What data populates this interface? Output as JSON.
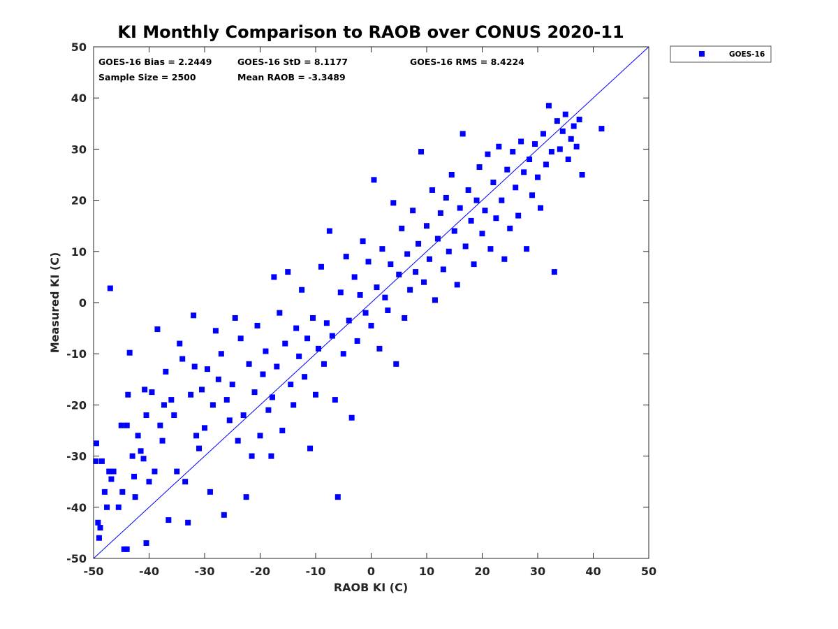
{
  "chart_data": {
    "type": "scatter",
    "title": "KI Monthly Comparison to RAOB over CONUS 2020-11",
    "xlabel": "RAOB KI (C)",
    "ylabel": "Measured KI (C)",
    "xlim": [
      -50,
      50
    ],
    "ylim": [
      -50,
      50
    ],
    "xticks": [
      -50,
      -40,
      -30,
      -20,
      -10,
      0,
      10,
      20,
      30,
      40,
      50
    ],
    "yticks": [
      -50,
      -40,
      -30,
      -20,
      -10,
      0,
      10,
      20,
      30,
      40,
      50
    ],
    "xtick_labels": [
      "-50",
      "-40",
      "-30",
      "-20",
      "-10",
      "0",
      "10",
      "20",
      "30",
      "40",
      "50"
    ],
    "ytick_labels": [
      "-50",
      "-40",
      "-30",
      "-20",
      "-10",
      "0",
      "10",
      "20",
      "30",
      "40",
      "50"
    ],
    "grid": false,
    "reference_line": {
      "x": [
        -50,
        50
      ],
      "y": [
        -50,
        50
      ]
    },
    "legend": {
      "position": "outside-top-right",
      "entries": [
        "GOES-16"
      ]
    },
    "stats": {
      "bias": "GOES-16 Bias = 2.2449",
      "std": "GOES-16 StD = 8.1177",
      "rms": "GOES-16 RMS = 8.4224",
      "sample_size": "Sample Size = 2500",
      "mean_raob": "Mean RAOB = -3.3489"
    },
    "series": [
      {
        "name": "GOES-16",
        "color": "#0000ff",
        "marker": "square",
        "points": [
          [
            -49.5,
            -27.5
          ],
          [
            -49.6,
            -31.0
          ],
          [
            -49.2,
            -43.0
          ],
          [
            -49.0,
            -46.0
          ],
          [
            -48.8,
            -44.0
          ],
          [
            -48.5,
            -31.0
          ],
          [
            -48.0,
            -37.0
          ],
          [
            -47.6,
            -40.0
          ],
          [
            -47.2,
            -33.0
          ],
          [
            -47.0,
            2.8
          ],
          [
            -46.8,
            -34.5
          ],
          [
            -46.4,
            -33.0
          ],
          [
            -45.5,
            -40.0
          ],
          [
            -45.0,
            -24.0
          ],
          [
            -44.8,
            -37.0
          ],
          [
            -44.5,
            -48.2
          ],
          [
            -44.0,
            -48.2
          ],
          [
            -44.0,
            -24.0
          ],
          [
            -43.8,
            -18.0
          ],
          [
            -43.5,
            -9.8
          ],
          [
            -43.0,
            -30.0
          ],
          [
            -42.7,
            -34.0
          ],
          [
            -42.5,
            -38.0
          ],
          [
            -42.0,
            -26.0
          ],
          [
            -41.5,
            -29.0
          ],
          [
            -41.0,
            -30.5
          ],
          [
            -40.8,
            -17.0
          ],
          [
            -40.5,
            -47.0
          ],
          [
            -40.5,
            -22.0
          ],
          [
            -40.0,
            -35.0
          ],
          [
            -39.5,
            -17.5
          ],
          [
            -39.0,
            -33.0
          ],
          [
            -38.5,
            -5.2
          ],
          [
            -38.0,
            -24.0
          ],
          [
            -37.6,
            -27.0
          ],
          [
            -37.3,
            -20.0
          ],
          [
            -37.0,
            -13.5
          ],
          [
            -36.5,
            -42.5
          ],
          [
            -36.0,
            -19.0
          ],
          [
            -35.5,
            -22.0
          ],
          [
            -35.0,
            -33.0
          ],
          [
            -34.5,
            -8.0
          ],
          [
            -34.0,
            -11.0
          ],
          [
            -33.5,
            -35.0
          ],
          [
            -33.0,
            -43.0
          ],
          [
            -32.5,
            -18.0
          ],
          [
            -32.0,
            -2.5
          ],
          [
            -31.8,
            -12.5
          ],
          [
            -31.5,
            -26.0
          ],
          [
            -31.0,
            -28.5
          ],
          [
            -30.5,
            -17.0
          ],
          [
            -30.0,
            -24.5
          ],
          [
            -29.5,
            -13.0
          ],
          [
            -29.0,
            -37.0
          ],
          [
            -28.5,
            -20.0
          ],
          [
            -28.0,
            -5.5
          ],
          [
            -27.5,
            -15.0
          ],
          [
            -27.0,
            -10.0
          ],
          [
            -26.5,
            -41.5
          ],
          [
            -26.0,
            -19.0
          ],
          [
            -25.5,
            -23.0
          ],
          [
            -25.0,
            -16.0
          ],
          [
            -24.5,
            -3.0
          ],
          [
            -24.0,
            -27.0
          ],
          [
            -23.5,
            -7.0
          ],
          [
            -23.0,
            -22.0
          ],
          [
            -22.5,
            -38.0
          ],
          [
            -22.0,
            -12.0
          ],
          [
            -21.5,
            -30.0
          ],
          [
            -21.0,
            -17.5
          ],
          [
            -20.5,
            -4.5
          ],
          [
            -20.0,
            -26.0
          ],
          [
            -19.5,
            -14.0
          ],
          [
            -19.0,
            -9.5
          ],
          [
            -18.5,
            -21.0
          ],
          [
            -18.0,
            -30.0
          ],
          [
            -17.8,
            -18.5
          ],
          [
            -17.5,
            5.0
          ],
          [
            -17.0,
            -12.5
          ],
          [
            -16.5,
            -2.0
          ],
          [
            -16.0,
            -25.0
          ],
          [
            -15.5,
            -8.0
          ],
          [
            -15.0,
            6.0
          ],
          [
            -14.5,
            -16.0
          ],
          [
            -14.0,
            -20.0
          ],
          [
            -13.5,
            -5.0
          ],
          [
            -13.0,
            -10.5
          ],
          [
            -12.5,
            2.5
          ],
          [
            -12.0,
            -14.5
          ],
          [
            -11.5,
            -7.0
          ],
          [
            -11.0,
            -28.5
          ],
          [
            -10.5,
            -3.0
          ],
          [
            -10.0,
            -18.0
          ],
          [
            -9.5,
            -9.0
          ],
          [
            -9.0,
            7.0
          ],
          [
            -8.5,
            -12.0
          ],
          [
            -8.0,
            -4.0
          ],
          [
            -7.5,
            14.0
          ],
          [
            -7.0,
            -6.5
          ],
          [
            -6.5,
            -19.0
          ],
          [
            -6.0,
            -38.0
          ],
          [
            -5.5,
            2.0
          ],
          [
            -5.0,
            -10.0
          ],
          [
            -4.5,
            9.0
          ],
          [
            -4.0,
            -3.5
          ],
          [
            -3.5,
            -22.5
          ],
          [
            -3.0,
            5.0
          ],
          [
            -2.5,
            -7.5
          ],
          [
            -2.0,
            1.5
          ],
          [
            -1.5,
            12.0
          ],
          [
            -1.0,
            -2.0
          ],
          [
            -0.5,
            8.0
          ],
          [
            0.0,
            -4.5
          ],
          [
            0.5,
            24.0
          ],
          [
            1.0,
            3.0
          ],
          [
            1.5,
            -9.0
          ],
          [
            2.0,
            10.5
          ],
          [
            2.5,
            1.0
          ],
          [
            3.0,
            -1.5
          ],
          [
            3.5,
            7.5
          ],
          [
            4.0,
            19.5
          ],
          [
            4.5,
            -12.0
          ],
          [
            5.0,
            5.5
          ],
          [
            5.5,
            14.5
          ],
          [
            6.0,
            -3.0
          ],
          [
            6.5,
            9.5
          ],
          [
            7.0,
            2.5
          ],
          [
            7.5,
            18.0
          ],
          [
            8.0,
            6.0
          ],
          [
            8.5,
            11.5
          ],
          [
            9.0,
            29.5
          ],
          [
            9.5,
            4.0
          ],
          [
            10.0,
            15.0
          ],
          [
            10.5,
            8.5
          ],
          [
            11.0,
            22.0
          ],
          [
            11.5,
            0.5
          ],
          [
            12.0,
            12.5
          ],
          [
            12.5,
            17.5
          ],
          [
            13.0,
            6.5
          ],
          [
            13.5,
            20.5
          ],
          [
            14.0,
            10.0
          ],
          [
            14.5,
            25.0
          ],
          [
            15.0,
            14.0
          ],
          [
            15.5,
            3.5
          ],
          [
            16.0,
            18.5
          ],
          [
            16.5,
            33.0
          ],
          [
            17.0,
            11.0
          ],
          [
            17.5,
            22.0
          ],
          [
            18.0,
            16.0
          ],
          [
            18.5,
            7.5
          ],
          [
            19.0,
            20.0
          ],
          [
            19.5,
            26.5
          ],
          [
            20.0,
            13.5
          ],
          [
            20.5,
            18.0
          ],
          [
            21.0,
            29.0
          ],
          [
            21.5,
            10.5
          ],
          [
            22.0,
            23.5
          ],
          [
            22.5,
            16.5
          ],
          [
            23.0,
            30.5
          ],
          [
            23.5,
            20.0
          ],
          [
            24.0,
            8.5
          ],
          [
            24.5,
            26.0
          ],
          [
            25.0,
            14.5
          ],
          [
            25.5,
            29.5
          ],
          [
            26.0,
            22.5
          ],
          [
            26.5,
            17.0
          ],
          [
            27.0,
            31.5
          ],
          [
            27.5,
            25.5
          ],
          [
            28.0,
            10.5
          ],
          [
            28.5,
            28.0
          ],
          [
            29.0,
            21.0
          ],
          [
            29.5,
            31.0
          ],
          [
            30.0,
            24.5
          ],
          [
            30.5,
            18.5
          ],
          [
            31.0,
            33.0
          ],
          [
            31.5,
            27.0
          ],
          [
            32.0,
            38.5
          ],
          [
            32.5,
            29.5
          ],
          [
            33.0,
            6.0
          ],
          [
            33.5,
            35.5
          ],
          [
            34.0,
            30.0
          ],
          [
            34.5,
            33.5
          ],
          [
            35.0,
            36.8
          ],
          [
            35.5,
            28.0
          ],
          [
            36.0,
            32.0
          ],
          [
            36.5,
            34.5
          ],
          [
            37.0,
            30.5
          ],
          [
            37.5,
            35.8
          ],
          [
            38.0,
            25.0
          ],
          [
            41.5,
            34.0
          ]
        ]
      }
    ]
  }
}
